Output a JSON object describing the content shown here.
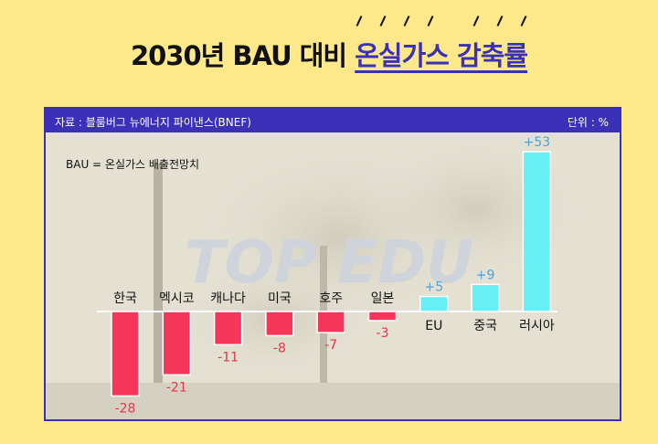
{
  "header": {
    "title_main": "2030년 BAU 대비",
    "title_highlight": "온실가스 감축률"
  },
  "panel": {
    "source": "자료 : 블룸버그 뉴에너지 파이낸스(BNEF)",
    "unit": "단위 : %",
    "note": "BAU = 온실가스 배출전망치",
    "watermark": "TOP EDU"
  },
  "colors": {
    "negative": "#f5365b",
    "positive": "#66f0f6",
    "negative_label": "#e8344d",
    "positive_label": "#4da3d6",
    "accent": "#3b31b8",
    "background": "#fde88a"
  },
  "chart_data": {
    "type": "bar",
    "categories": [
      "한국",
      "멕시코",
      "캐나다",
      "미국",
      "호주",
      "일본",
      "EU",
      "중국",
      "러시아"
    ],
    "values": [
      -28,
      -21,
      -11,
      -8,
      -7,
      -3,
      5,
      9,
      53
    ],
    "value_labels": [
      "-28",
      "-21",
      "-11",
      "-8",
      "-7",
      "-3",
      "+5",
      "+9",
      "+53"
    ],
    "title": "2030년 BAU 대비 온실가스 감축률",
    "ylabel": "",
    "grid": false,
    "legend": "none"
  }
}
